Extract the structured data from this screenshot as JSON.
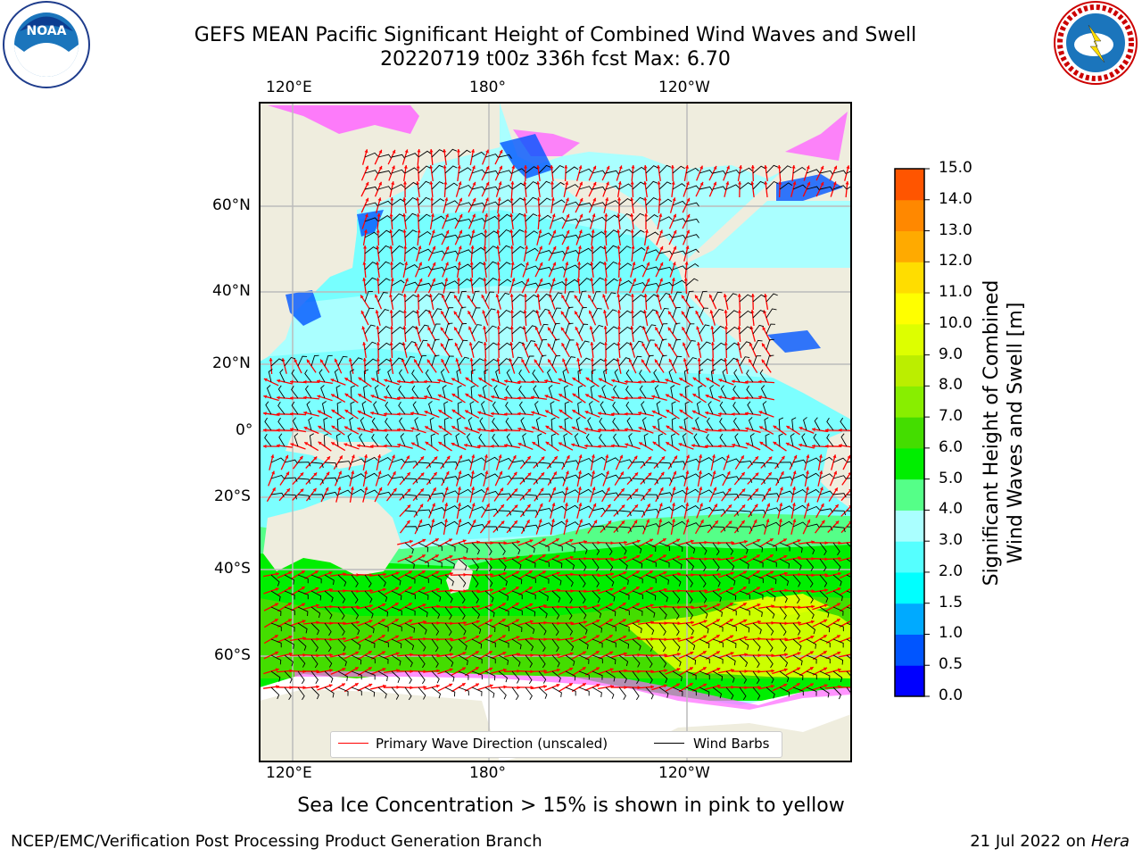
{
  "title": {
    "line1": "GEFS MEAN Pacific Significant Height of Combined Wind Waves and Swell",
    "line2": "20220719 t00z 336h fcst   Max: 6.70"
  },
  "logos": {
    "left": {
      "icon": "noaa-logo",
      "text": "NOAA"
    },
    "right": {
      "icon": "national-weather-service-logo",
      "text": "NATIONAL WEATHER SERVICE"
    }
  },
  "map": {
    "lon_labels_top": [
      "120°E",
      "180°",
      "120°W"
    ],
    "lon_labels_bottom": [
      "120°E",
      "180°",
      "120°W"
    ],
    "lat_labels": [
      "60°N",
      "40°N",
      "20°N",
      "0°",
      "20°S",
      "40°S",
      "60°S"
    ],
    "colors": {
      "land": "#efedde",
      "ice": "#ff66ff",
      "ice_edge": "#ffb070",
      "wave_direction": "#ff0000",
      "wind_barb": "#000000"
    }
  },
  "colorbar": {
    "title_line1": "Significant Height of Combined",
    "title_line2": "Wind Waves and Swell [m]",
    "ticks": [
      "15.0",
      "14.0",
      "13.0",
      "12.0",
      "11.0",
      "10.0",
      "9.0",
      "8.0",
      "7.0",
      "6.0",
      "5.0",
      "4.0",
      "3.0",
      "2.0",
      "1.5",
      "1.0",
      "0.5",
      "0.0"
    ],
    "colors_bottom_to_top": [
      "#0000ff",
      "#0055ff",
      "#00aaff",
      "#00ffff",
      "#55ffff",
      "#aaffff",
      "#55ff88",
      "#00ee00",
      "#44dd00",
      "#88ee00",
      "#bbee00",
      "#ddff00",
      "#ffff00",
      "#ffdd00",
      "#ffaa00",
      "#ff8800",
      "#ff5500",
      "#ff2200",
      "#ff0000"
    ]
  },
  "legend": {
    "wave_direction": "Primary Wave Direction (unscaled)",
    "wind_barbs": "Wind Barbs"
  },
  "caption": "Sea Ice Concentration > 15% is shown in pink to yellow",
  "footer": {
    "left": "NCEP/EMC/Verification Post Processing Product Generation Branch",
    "right_date": "21 Jul 2022 on ",
    "right_host": "Hera"
  },
  "chart_data": {
    "type": "heatmap",
    "title": "GEFS MEAN Pacific Significant Height of Combined Wind Waves and Swell",
    "subtitle": "20220719 t00z 336h fcst   Max: 6.70",
    "max_value": 6.7,
    "units": "m",
    "colorbar_ticks": [
      0.0,
      0.5,
      1.0,
      1.5,
      2.0,
      3.0,
      4.0,
      5.0,
      6.0,
      7.0,
      8.0,
      9.0,
      10.0,
      11.0,
      12.0,
      13.0,
      14.0,
      15.0
    ],
    "colorbar_range": [
      0.0,
      15.0
    ],
    "lon_ticks": [
      "120°E",
      "180°",
      "120°W"
    ],
    "lat_ticks": [
      "60°N",
      "40°N",
      "20°N",
      "0°",
      "20°S",
      "40°S",
      "60°S"
    ],
    "grid": true
  }
}
